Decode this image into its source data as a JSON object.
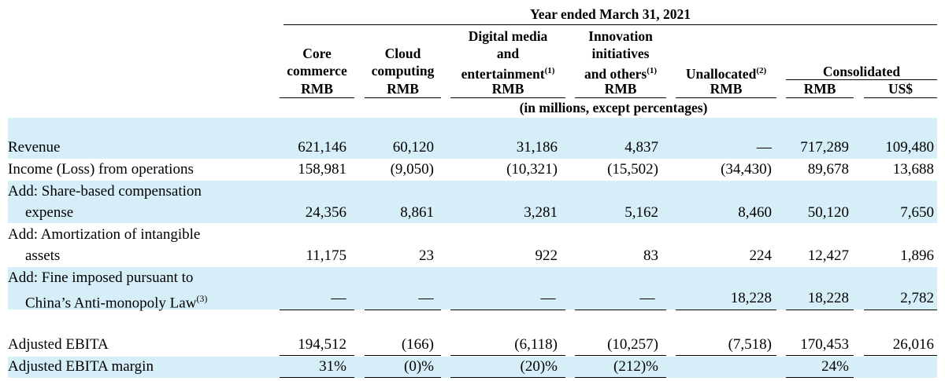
{
  "header": {
    "period": "Year ended March 31, 2021",
    "units": "(in millions, except percentages)",
    "columns": [
      {
        "lines": [
          "Core",
          "commerce"
        ],
        "currency": "RMB"
      },
      {
        "lines": [
          "Cloud",
          "computing"
        ],
        "currency": "RMB"
      },
      {
        "lines": [
          "Digital media",
          "and",
          "entertainment"
        ],
        "sup": "(1)",
        "currency": "RMB"
      },
      {
        "lines": [
          "Innovation",
          "initiatives",
          "and others"
        ],
        "sup": "(1)",
        "currency": "RMB"
      },
      {
        "lines": [
          "Unallocated"
        ],
        "sup": "(2)",
        "currency": "RMB"
      },
      {
        "lines": [
          "Consolidated"
        ],
        "currency": "RMB"
      },
      {
        "lines": [],
        "currency": "US$"
      }
    ]
  },
  "rows": [
    {
      "label": [
        "Revenue"
      ],
      "values": [
        "621,146",
        "60,120",
        "31,186",
        "4,837",
        "—",
        "717,289",
        "109,480"
      ]
    },
    {
      "label": [
        "Income (Loss) from operations"
      ],
      "values": [
        "158,981",
        "(9,050)",
        "(10,321)",
        "(15,502)",
        "(34,430)",
        "89,678",
        "13,688"
      ]
    },
    {
      "label": [
        "Add: Share-based compensation",
        "expense"
      ],
      "values": [
        "24,356",
        "8,861",
        "3,281",
        "5,162",
        "8,460",
        "50,120",
        "7,650"
      ]
    },
    {
      "label": [
        "Add: Amortization of intangible",
        "assets"
      ],
      "values": [
        "11,175",
        "23",
        "922",
        "83",
        "224",
        "12,427",
        "1,896"
      ]
    },
    {
      "label": [
        "Add: Fine imposed pursuant to",
        "China’s Anti-monopoly Law"
      ],
      "label_sup": "(3)",
      "values": [
        "—",
        "—",
        "—",
        "—",
        "18,228",
        "18,228",
        "2,782"
      ]
    },
    {
      "label": [
        "Adjusted EBITA"
      ],
      "values": [
        "194,512",
        "(166)",
        "(6,118)",
        "(10,257)",
        "(7,518)",
        "170,453",
        "26,016"
      ]
    },
    {
      "label": [
        "Adjusted EBITA margin"
      ],
      "values": [
        "31%",
        "(0)%",
        "(20)%",
        "(212)%",
        "",
        "24%",
        ""
      ]
    }
  ]
}
